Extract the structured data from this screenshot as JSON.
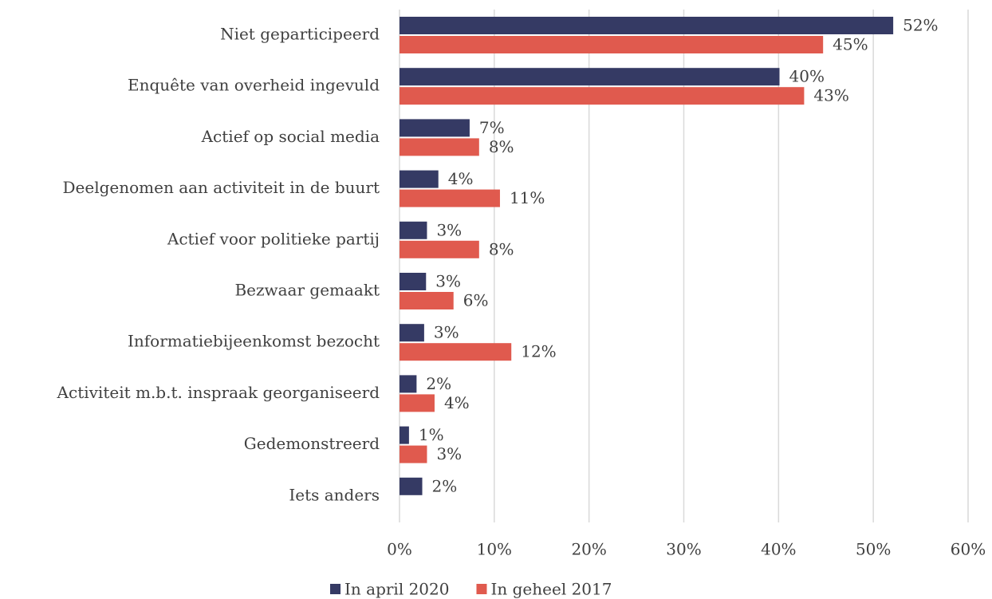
{
  "chart_data": {
    "type": "bar",
    "orientation": "horizontal",
    "categories": [
      "Niet geparticipeerd",
      "Enquête van overheid ingevuld",
      "Actief op social media",
      "Deelgenomen aan activiteit in de buurt",
      "Actief voor politieke partij",
      "Bezwaar gemaakt",
      "Informatiebijeenkomst bezocht",
      "Activiteit m.b.t. inspraak georganiseerd",
      "Gedemonstreerd",
      "Iets anders"
    ],
    "series": [
      {
        "name": "In april 2020",
        "color": "#353a64",
        "values": [
          52.1,
          40.1,
          7.4,
          4.1,
          2.9,
          2.8,
          2.6,
          1.8,
          1.0,
          2.4
        ],
        "value_labels": [
          "52%",
          "40%",
          "7%",
          "4%",
          "3%",
          "3%",
          "3%",
          "2%",
          "1%",
          "2%"
        ]
      },
      {
        "name": "In geheel 2017",
        "color": "#e05a4e",
        "values": [
          44.7,
          42.7,
          8.4,
          10.6,
          8.4,
          5.7,
          11.8,
          3.7,
          2.9,
          null
        ],
        "value_labels": [
          "45%",
          "43%",
          "8%",
          "11%",
          "8%",
          "6%",
          "12%",
          "4%",
          "3%",
          null
        ]
      }
    ],
    "xlim": [
      0,
      60
    ],
    "xticks": [
      {
        "value": 0,
        "label": "0%"
      },
      {
        "value": 10,
        "label": "10%"
      },
      {
        "value": 20,
        "label": "20%"
      },
      {
        "value": 30,
        "label": "30%"
      },
      {
        "value": 40,
        "label": "40%"
      },
      {
        "value": 50,
        "label": "50%"
      },
      {
        "value": 60,
        "label": "60%"
      }
    ],
    "grid": true,
    "legend": "bottom"
  }
}
